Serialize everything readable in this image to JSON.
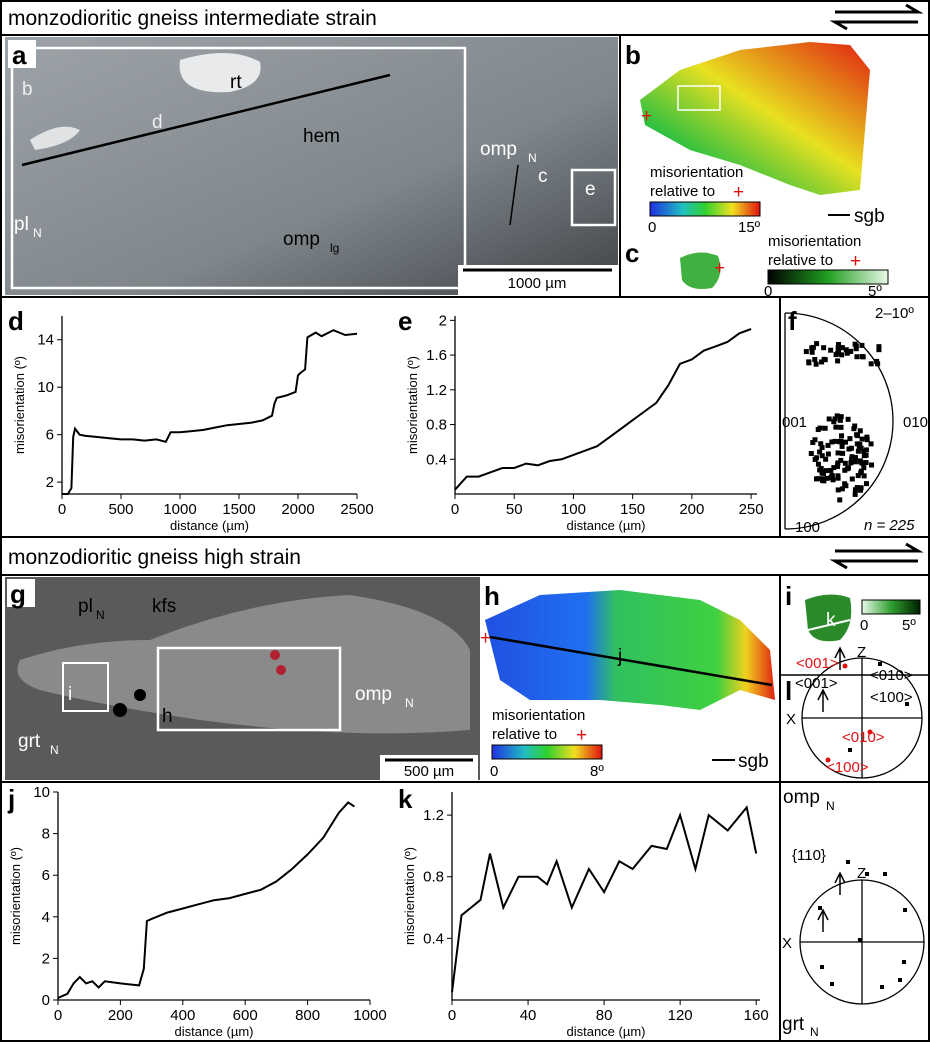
{
  "headers": [
    "monzodioritic gneiss intermediate strain",
    "monzodioritic gneiss high strain"
  ],
  "panel_a": {
    "letter": "a",
    "inset_b": "b",
    "inset_d": "d",
    "rt": "rt",
    "hem": "hem",
    "omp_n": "omp",
    "omp_n_sub": "N",
    "pl_n": "pl",
    "pl_n_sub": "N",
    "omp_lg": "omp",
    "omp_lg_sub": "lg",
    "box_c": "c",
    "box_e": "e",
    "scale": "1000 µm"
  },
  "panel_b": {
    "letter": "b",
    "legend_1": "misorientation",
    "legend_2": "relative to",
    "ref": "+",
    "cb_min": "0",
    "cb_max": "15º",
    "sgb": "sgb"
  },
  "panel_c": {
    "letter": "c",
    "legend_1": "misorientation",
    "legend_2": "relative to",
    "ref": "+",
    "cb_min": "0",
    "cb_max": "5º"
  },
  "panel_f": {
    "letter": "f",
    "range": "2–10º",
    "left": "001",
    "right": "010",
    "bottom": "100",
    "n": "n = 225"
  },
  "panel_g": {
    "letter": "g",
    "pl_n": "pl",
    "pl_n_sub": "N",
    "kfs": "kfs",
    "box_i": "i",
    "box_h": "h",
    "omp_n": "omp",
    "omp_n_sub": "N",
    "grt_n": "grt",
    "grt_n_sub": "N",
    "scale": "500 µm"
  },
  "panel_h": {
    "letter": "h",
    "line_j": "j",
    "legend_1": "misorientation",
    "legend_2": "relative to",
    "ref": "+",
    "cb_min": "0",
    "cb_max": "8º",
    "sgb": "sgb"
  },
  "panel_i": {
    "letter": "i",
    "line_k": "k",
    "cb_min": "0",
    "cb_max": "5º"
  },
  "panel_l": {
    "letter": "l",
    "z1": "Z",
    "x1": "X",
    "red_001": "<001>",
    "red_010": "<010>",
    "red_100": "<100>",
    "blk_001": "<001>",
    "blk_010": "<010>",
    "blk_100": "<100>",
    "omp": "omp",
    "omp_sub": "N",
    "z2": "Z",
    "x2": "X",
    "plane": "{110}",
    "grt": "grt",
    "grt_sub": "N"
  },
  "letters": {
    "d": "d",
    "e": "e",
    "j": "j",
    "k": "k"
  },
  "chart_data": [
    {
      "type": "line",
      "xlabel": "distance (µm)",
      "ylabel": "misorientation (º)",
      "xlim": [
        0,
        2500
      ],
      "ylim": [
        1,
        16
      ],
      "xticks": [
        0,
        500,
        1000,
        1500,
        2000,
        2500
      ],
      "yticks": [
        2,
        6,
        10,
        14
      ],
      "color": "#000000",
      "x": [
        0,
        50,
        80,
        95,
        110,
        150,
        200,
        300,
        400,
        500,
        600,
        700,
        800,
        880,
        920,
        1000,
        1100,
        1200,
        1300,
        1400,
        1500,
        1600,
        1700,
        1780,
        1800,
        1820,
        1900,
        1980,
        2000,
        2020,
        2060,
        2080,
        2150,
        2200,
        2300,
        2400,
        2500
      ],
      "values": [
        1,
        1,
        1.5,
        5.8,
        6.5,
        6,
        5.9,
        5.8,
        5.7,
        5.6,
        5.6,
        5.5,
        5.6,
        5.4,
        6.2,
        6.2,
        6.3,
        6.4,
        6.6,
        6.8,
        6.9,
        7,
        7.2,
        7.6,
        8.6,
        9.1,
        9.3,
        9.6,
        11,
        11.2,
        11.5,
        14.2,
        14.6,
        14.3,
        14.8,
        14.4,
        14.5
      ]
    },
    {
      "type": "line",
      "xlabel": "distance (µm)",
      "ylabel": "misorientation (º)",
      "xlim": [
        0,
        255
      ],
      "ylim": [
        0,
        2.05
      ],
      "xticks": [
        0,
        50,
        100,
        150,
        200,
        250
      ],
      "yticks": [
        0.4,
        0.8,
        1.2,
        1.6,
        2
      ],
      "color": "#000000",
      "x": [
        0,
        10,
        20,
        30,
        40,
        50,
        60,
        70,
        80,
        90,
        100,
        110,
        120,
        130,
        140,
        150,
        160,
        170,
        180,
        190,
        200,
        210,
        220,
        230,
        240,
        250
      ],
      "values": [
        0.05,
        0.2,
        0.2,
        0.25,
        0.3,
        0.3,
        0.35,
        0.33,
        0.38,
        0.4,
        0.45,
        0.5,
        0.55,
        0.65,
        0.75,
        0.85,
        0.95,
        1.05,
        1.25,
        1.5,
        1.55,
        1.65,
        1.7,
        1.75,
        1.85,
        1.9
      ]
    },
    {
      "type": "line",
      "xlabel": "distance (µm)",
      "ylabel": "misorientation (º)",
      "xlim": [
        0,
        1000
      ],
      "ylim": [
        0,
        10
      ],
      "xticks": [
        0,
        200,
        400,
        600,
        800,
        1000
      ],
      "yticks": [
        0,
        2,
        4,
        6,
        8,
        10
      ],
      "color": "#000000",
      "x": [
        0,
        30,
        50,
        70,
        90,
        110,
        130,
        150,
        200,
        260,
        275,
        285,
        300,
        350,
        400,
        450,
        500,
        550,
        600,
        650,
        700,
        750,
        800,
        850,
        900,
        930,
        950
      ],
      "values": [
        0.1,
        0.3,
        0.8,
        1.1,
        0.8,
        0.9,
        0.6,
        0.9,
        0.8,
        0.7,
        1.5,
        3.8,
        3.9,
        4.2,
        4.4,
        4.6,
        4.8,
        4.9,
        5.1,
        5.3,
        5.7,
        6.3,
        7,
        7.8,
        9,
        9.5,
        9.3
      ]
    },
    {
      "type": "line",
      "xlabel": "distance (µm)",
      "ylabel": "misorientation (º)",
      "xlim": [
        0,
        162
      ],
      "ylim": [
        0,
        1.35
      ],
      "xticks": [
        0,
        40,
        80,
        120,
        160
      ],
      "yticks": [
        0.4,
        0.8,
        1.2
      ],
      "color": "#000000",
      "x": [
        0,
        5,
        10,
        15,
        20,
        27,
        35,
        45,
        50,
        55,
        63,
        72,
        80,
        88,
        95,
        105,
        113,
        120,
        128,
        135,
        145,
        155,
        160
      ],
      "values": [
        0.05,
        0.55,
        0.6,
        0.65,
        0.95,
        0.6,
        0.8,
        0.8,
        0.75,
        0.9,
        0.6,
        0.85,
        0.7,
        0.9,
        0.85,
        1,
        0.98,
        1.2,
        0.85,
        1.2,
        1.1,
        1.25,
        0.95
      ]
    }
  ]
}
